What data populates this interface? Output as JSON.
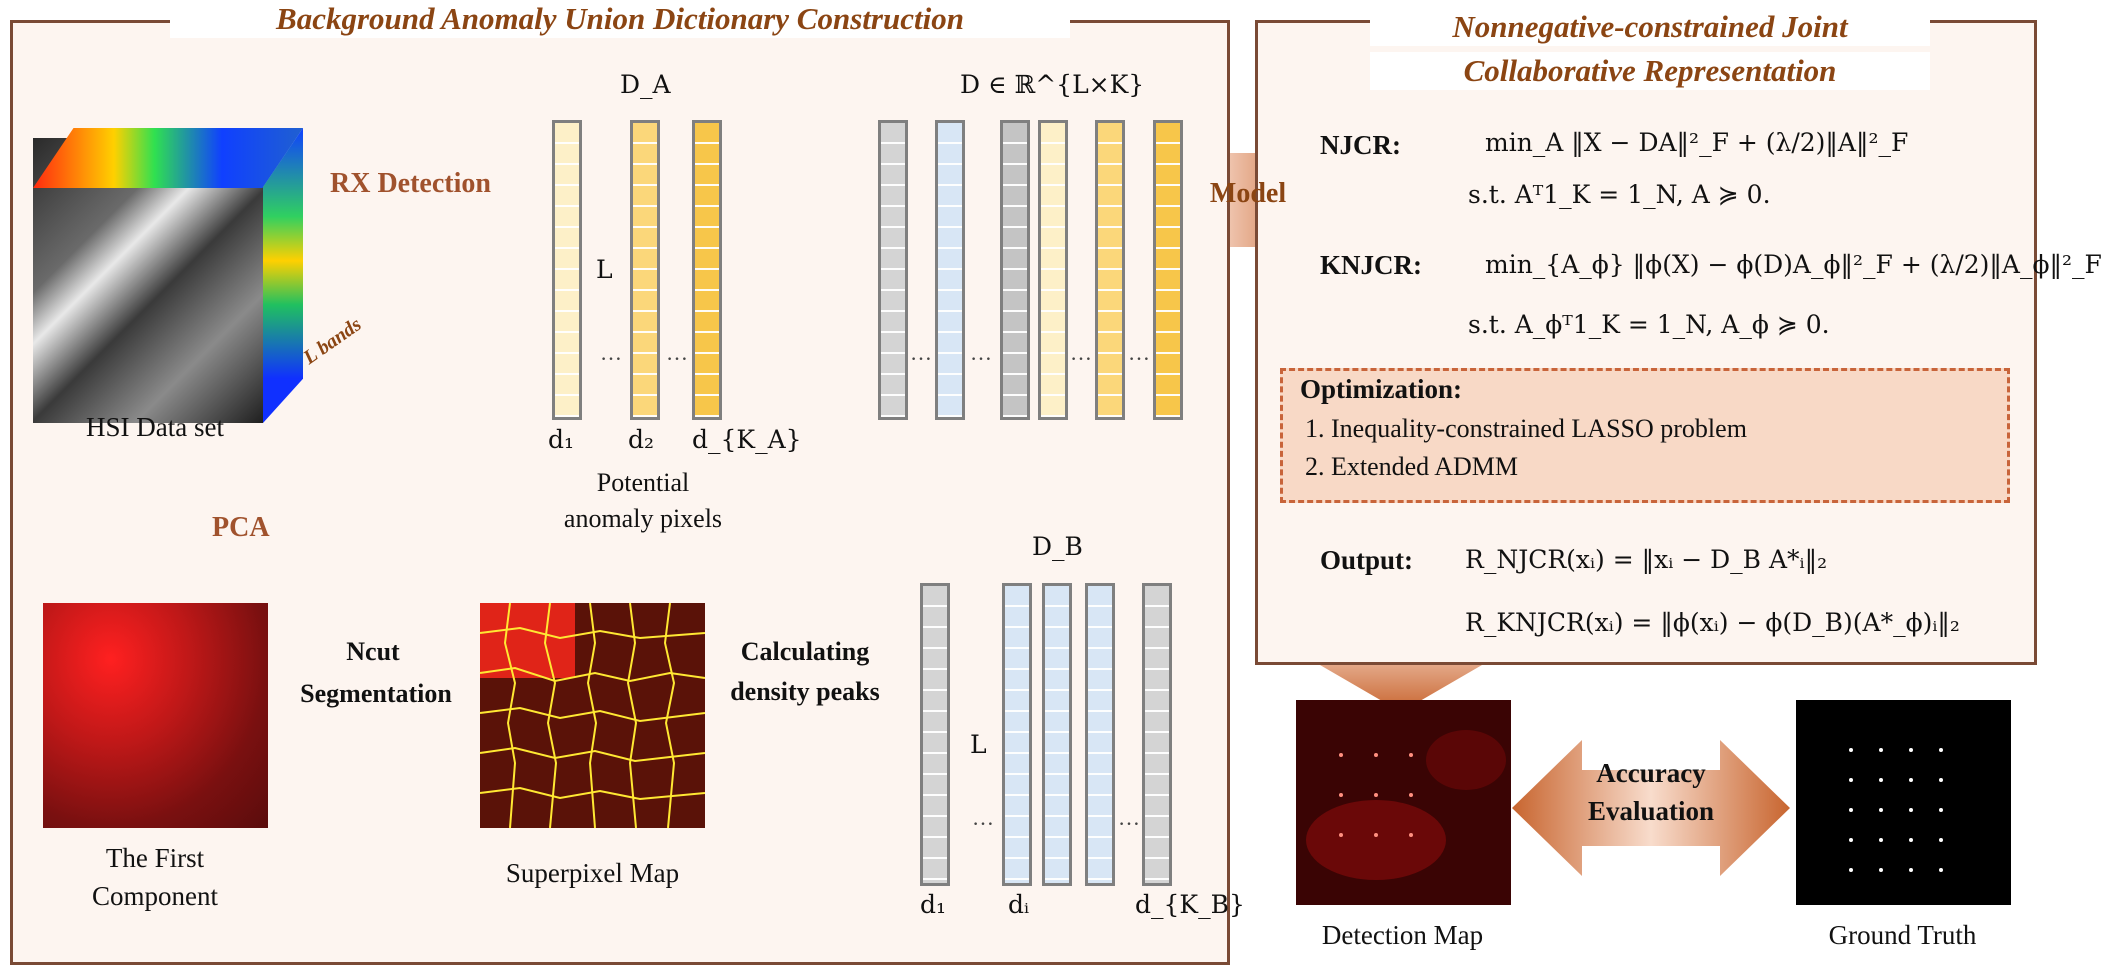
{
  "left_panel": {
    "title": "Background Anomaly Union Dictionary Construction"
  },
  "right_panel": {
    "title_line1": "Nonnegative-constrained Joint",
    "title_line2": "Collaborative Representation"
  },
  "labels": {
    "rx_detection": "RX Detection",
    "l_bands": "L bands",
    "hsi_dataset": "HSI Data set",
    "pca": "PCA",
    "first_component_line1": "The First",
    "first_component_line2": "Component",
    "ncut_line1": "Ncut",
    "ncut_line2": "Segmentation",
    "superpixel_map": "Superpixel Map",
    "density_line1": "Calculating",
    "density_line2": "density peaks",
    "potential_line1": "Potential",
    "potential_line2": "anomaly pixels",
    "model": "Model",
    "detection_map": "Detection Map",
    "ground_truth": "Ground Truth",
    "accuracy_line1": "Accuracy",
    "accuracy_line2": "Evaluation"
  },
  "dictionary": {
    "da_label": "D_A",
    "db_label": "D_B",
    "d_label": "D ∈ ℝ^{L×K}",
    "l_symbol": "L",
    "d1": "d₁",
    "d2": "d₂",
    "dka": "d_{K_A}",
    "di": "dᵢ",
    "dkb": "d_{K_B}",
    "ellipsis": "…"
  },
  "formulas": {
    "njcr_label": "NJCR:",
    "njcr_objective": "min_A ‖X − DA‖²_F + (λ/2)‖A‖²_F",
    "njcr_constraint": "s.t.  Aᵀ1_K = 1_N,   A ≽ 0.",
    "knjcr_label": "KNJCR:",
    "knjcr_objective": "min_{A_ϕ} ‖ϕ(X) − ϕ(D)A_ϕ‖²_F + (λ/2)‖A_ϕ‖²_F",
    "knjcr_constraint": "s.t.  A_ϕᵀ1_K = 1_N,   A_ϕ ≽ 0.",
    "output_label": "Output:",
    "output_njcr": "R_NJCR(xᵢ) = ‖xᵢ − D_B A*ᵢ‖₂",
    "output_knjcr": "R_KNJCR(xᵢ) = ‖ϕ(xᵢ) − ϕ(D_B)(A*_ϕ)ᵢ‖₂"
  },
  "optimization": {
    "title": "Optimization:",
    "items": [
      "1.   Inequality-constrained LASSO problem",
      "2.   Extended ADMM"
    ]
  },
  "colors": {
    "panel_border": "#7a4a35",
    "title_text": "#8b4513",
    "arrow": "#d07040",
    "panel_fill": "#fdf5f0",
    "opt_fill": "#f8d9c6"
  }
}
